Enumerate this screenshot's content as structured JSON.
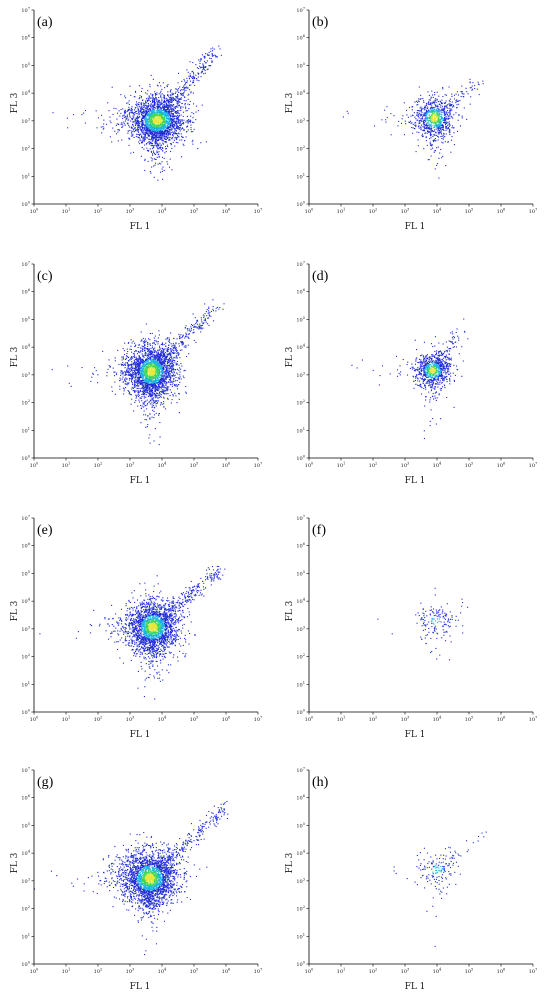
{
  "chart_data": [
    {
      "id": "a",
      "type": "scatter",
      "panel_label": "(a)",
      "xlabel": "FL 1",
      "ylabel": "FL 3",
      "x_scale": "log",
      "y_scale": "log",
      "xlim": [
        1,
        10000000
      ],
      "ylim": [
        1,
        10000000
      ],
      "x_ticks": [
        1,
        10,
        100,
        1000,
        10000,
        100000,
        1000000,
        10000000
      ],
      "y_ticks": [
        1,
        10,
        100,
        1000,
        10000,
        100000,
        1000000,
        10000000
      ],
      "tick_labels": [
        "10",
        "10",
        "10",
        "10",
        "10",
        "10",
        "10",
        "10"
      ],
      "tick_exponents": [
        "0",
        "1",
        "2",
        "3",
        "4",
        "5",
        "6",
        "7"
      ],
      "cluster": {
        "center_x": 7000,
        "center_y": 1100,
        "spread_x_decades": 0.45,
        "spread_y_decades": 0.45,
        "tail_to_x": 500000,
        "tail_to_y": 400000,
        "point_count": 2600
      },
      "colors": {
        "sparse": "#1f2bd6",
        "medium": "#19b4e0",
        "dense": "#3cd75a",
        "peak": "#e8e63a"
      }
    },
    {
      "id": "b",
      "type": "scatter",
      "panel_label": "(b)",
      "xlabel": "FL 1",
      "ylabel": "FL 3",
      "x_scale": "log",
      "y_scale": "log",
      "xlim": [
        1,
        10000000
      ],
      "ylim": [
        1,
        10000000
      ],
      "x_ticks": [
        1,
        10,
        100,
        1000,
        10000,
        100000,
        1000000,
        10000000
      ],
      "y_ticks": [
        1,
        10,
        100,
        1000,
        10000,
        100000,
        1000000,
        10000000
      ],
      "tick_labels": [
        "10",
        "10",
        "10",
        "10",
        "10",
        "10",
        "10",
        "10"
      ],
      "tick_exponents": [
        "0",
        "1",
        "2",
        "3",
        "4",
        "5",
        "6",
        "7"
      ],
      "cluster": {
        "center_x": 8000,
        "center_y": 1300,
        "spread_x_decades": 0.32,
        "spread_y_decades": 0.4,
        "tail_to_x": 200000,
        "tail_to_y": 30000,
        "point_count": 900
      },
      "colors": {
        "sparse": "#1f2bd6",
        "medium": "#19b4e0",
        "dense": "#3cd75a",
        "peak": "#e8e63a"
      }
    },
    {
      "id": "c",
      "type": "scatter",
      "panel_label": "(c)",
      "xlabel": "FL 1",
      "ylabel": "FL 3",
      "x_scale": "log",
      "y_scale": "log",
      "xlim": [
        1,
        10000000
      ],
      "ylim": [
        1,
        10000000
      ],
      "x_ticks": [
        1,
        10,
        100,
        1000,
        10000,
        100000,
        1000000,
        10000000
      ],
      "y_ticks": [
        1,
        10,
        100,
        1000,
        10000,
        100000,
        1000000,
        10000000
      ],
      "tick_labels": [
        "10",
        "10",
        "10",
        "10",
        "10",
        "10",
        "10",
        "10"
      ],
      "tick_exponents": [
        "0",
        "1",
        "2",
        "3",
        "4",
        "5",
        "6",
        "7"
      ],
      "cluster": {
        "center_x": 4500,
        "center_y": 1400,
        "spread_x_decades": 0.4,
        "spread_y_decades": 0.5,
        "tail_to_x": 500000,
        "tail_to_y": 300000,
        "point_count": 2600
      },
      "colors": {
        "sparse": "#1f2bd6",
        "medium": "#19b4e0",
        "dense": "#3cd75a",
        "peak": "#e8e63a"
      }
    },
    {
      "id": "d",
      "type": "scatter",
      "panel_label": "(d)",
      "xlabel": "FL 1",
      "ylabel": "FL 3",
      "x_scale": "log",
      "y_scale": "log",
      "xlim": [
        1,
        10000000
      ],
      "ylim": [
        1,
        10000000
      ],
      "x_ticks": [
        1,
        10,
        100,
        1000,
        10000,
        100000,
        1000000,
        10000000
      ],
      "y_ticks": [
        1,
        10,
        100,
        1000,
        10000,
        100000,
        1000000,
        10000000
      ],
      "tick_labels": [
        "10",
        "10",
        "10",
        "10",
        "10",
        "10",
        "10",
        "10"
      ],
      "tick_exponents": [
        "0",
        "1",
        "2",
        "3",
        "4",
        "5",
        "6",
        "7"
      ],
      "cluster": {
        "center_x": 7000,
        "center_y": 1500,
        "spread_x_decades": 0.28,
        "spread_y_decades": 0.32,
        "tail_to_x": 60000,
        "tail_to_y": 50000,
        "point_count": 900
      },
      "colors": {
        "sparse": "#1f2bd6",
        "medium": "#19b4e0",
        "dense": "#3cd75a",
        "peak": "#e8e63a"
      }
    },
    {
      "id": "e",
      "type": "scatter",
      "panel_label": "(e)",
      "xlabel": "FL 1",
      "ylabel": "FL 3",
      "x_scale": "log",
      "y_scale": "log",
      "xlim": [
        1,
        10000000
      ],
      "ylim": [
        1,
        10000000
      ],
      "x_ticks": [
        1,
        10,
        100,
        1000,
        10000,
        100000,
        1000000,
        10000000
      ],
      "y_ticks": [
        1,
        10,
        100,
        1000,
        10000,
        100000,
        1000000,
        10000000
      ],
      "tick_labels": [
        "10",
        "10",
        "10",
        "10",
        "10",
        "10",
        "10",
        "10"
      ],
      "tick_exponents": [
        "0",
        "1",
        "2",
        "3",
        "4",
        "5",
        "6",
        "7"
      ],
      "cluster": {
        "center_x": 5000,
        "center_y": 1200,
        "spread_x_decades": 0.42,
        "spread_y_decades": 0.48,
        "tail_to_x": 600000,
        "tail_to_y": 150000,
        "point_count": 2400
      },
      "colors": {
        "sparse": "#1f2bd6",
        "medium": "#19b4e0",
        "dense": "#3cd75a",
        "peak": "#e8e63a"
      }
    },
    {
      "id": "f",
      "type": "scatter",
      "panel_label": "(f)",
      "xlabel": "FL 1",
      "ylabel": "FL 3",
      "x_scale": "log",
      "y_scale": "log",
      "xlim": [
        1,
        10000000
      ],
      "ylim": [
        1,
        10000000
      ],
      "x_ticks": [
        1,
        10,
        100,
        1000,
        10000,
        100000,
        1000000,
        10000000
      ],
      "y_ticks": [
        1,
        10,
        100,
        1000,
        10000,
        100000,
        1000000,
        10000000
      ],
      "tick_labels": [
        "10",
        "10",
        "10",
        "10",
        "10",
        "10",
        "10",
        "10"
      ],
      "tick_exponents": [
        "0",
        "1",
        "2",
        "3",
        "4",
        "5",
        "6",
        "7"
      ],
      "cluster": {
        "center_x": 9000,
        "center_y": 2000,
        "spread_x_decades": 0.3,
        "spread_y_decades": 0.35,
        "tail_to_x": 60000,
        "tail_to_y": 8000,
        "point_count": 160
      },
      "colors": {
        "sparse": "#1f2bd6",
        "medium": "#19b4e0",
        "dense": "#3cd75a",
        "peak": "#e8e63a"
      }
    },
    {
      "id": "g",
      "type": "scatter",
      "panel_label": "(g)",
      "xlabel": "FL 1",
      "ylabel": "FL 3",
      "x_scale": "log",
      "y_scale": "log",
      "xlim": [
        1,
        10000000
      ],
      "ylim": [
        1,
        10000000
      ],
      "x_ticks": [
        1,
        10,
        100,
        1000,
        10000,
        100000,
        1000000,
        10000000
      ],
      "y_ticks": [
        1,
        10,
        100,
        1000,
        10000,
        100000,
        1000000,
        10000000
      ],
      "tick_labels": [
        "10",
        "10",
        "10",
        "10",
        "10",
        "10",
        "10",
        "10"
      ],
      "tick_exponents": [
        "0",
        "1",
        "2",
        "3",
        "4",
        "5",
        "6",
        "7"
      ],
      "cluster": {
        "center_x": 4000,
        "center_y": 1300,
        "spread_x_decades": 0.45,
        "spread_y_decades": 0.5,
        "tail_to_x": 1000000,
        "tail_to_y": 500000,
        "point_count": 2600
      },
      "colors": {
        "sparse": "#1f2bd6",
        "medium": "#19b4e0",
        "dense": "#3cd75a",
        "peak": "#e8e63a"
      }
    },
    {
      "id": "h",
      "type": "scatter",
      "panel_label": "(h)",
      "xlabel": "FL 1",
      "ylabel": "FL 3",
      "x_scale": "log",
      "y_scale": "log",
      "xlim": [
        1,
        10000000
      ],
      "ylim": [
        1,
        10000000
      ],
      "x_ticks": [
        1,
        10,
        100,
        1000,
        10000,
        100000,
        1000000,
        10000000
      ],
      "y_ticks": [
        1,
        10,
        100,
        1000,
        10000,
        100000,
        1000000,
        10000000
      ],
      "tick_labels": [
        "10",
        "10",
        "10",
        "10",
        "10",
        "10",
        "10",
        "10"
      ],
      "tick_exponents": [
        "0",
        "1",
        "2",
        "3",
        "4",
        "5",
        "6",
        "7"
      ],
      "cluster": {
        "center_x": 10000,
        "center_y": 2500,
        "spread_x_decades": 0.35,
        "spread_y_decades": 0.35,
        "tail_to_x": 500000,
        "tail_to_y": 100000,
        "point_count": 170
      },
      "colors": {
        "sparse": "#1f2bd6",
        "medium": "#19b4e0",
        "dense": "#3cd75a",
        "peak": "#e8e63a"
      }
    }
  ]
}
